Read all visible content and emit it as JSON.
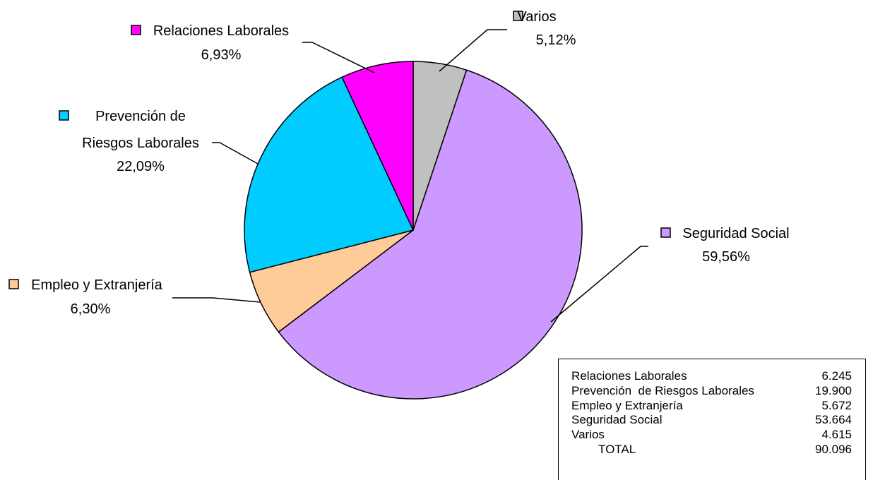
{
  "chart_data": {
    "type": "pie",
    "title": "",
    "slices": [
      {
        "label": "Varios",
        "percent_label": "5,12%",
        "value": 4615,
        "color": "#C0C0C0"
      },
      {
        "label": "Seguridad Social",
        "percent_label": "59,56%",
        "value": 53664,
        "color": "#CC99FF"
      },
      {
        "label": "Empleo y Extranjería",
        "percent_label": "6,30%",
        "value": 5672,
        "color": "#FFCC99"
      },
      {
        "label": "Prevención de Riesgos Laborales",
        "label_lines": [
          "Prevención de",
          "Riesgos Laborales"
        ],
        "percent_label": "22,09%",
        "value": 19900,
        "color": "#00CCFF"
      },
      {
        "label": "Relaciones Laborales",
        "percent_label": "6,93%",
        "value": 6245,
        "color": "#FF00FF"
      }
    ],
    "start_angle": "12 o'clock, clockwise"
  },
  "totals_table": {
    "rows": [
      {
        "name": "Relaciones Laborales",
        "value": "6.245"
      },
      {
        "name": "Prevención  de Riesgos Laborales",
        "value": "19.900"
      },
      {
        "name": "Empleo y Extranjería",
        "value": "5.672"
      },
      {
        "name": "Seguridad Social",
        "value": "53.664"
      },
      {
        "name": "Varios",
        "value": "4.615"
      }
    ],
    "total_label": "TOTAL",
    "total_value": "90.096"
  }
}
